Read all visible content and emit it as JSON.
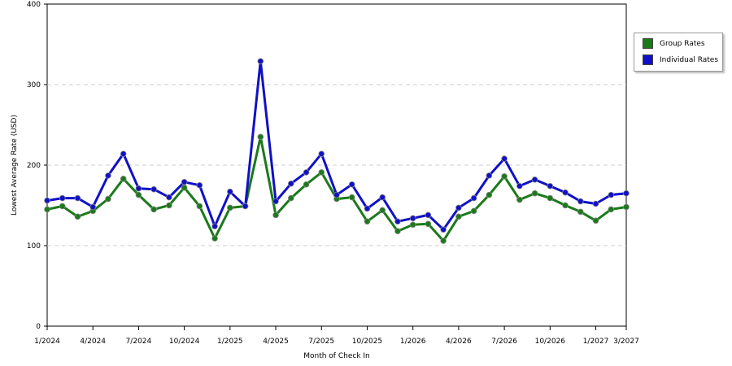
{
  "chart_data": {
    "type": "line",
    "xlabel": "Month of Check In",
    "ylabel": "Lowest Average Rate (USD)",
    "ylim": [
      0,
      400
    ],
    "yticks": [
      0,
      100,
      200,
      300,
      400
    ],
    "xtick_labels": [
      "1/2024",
      "4/2024",
      "7/2024",
      "10/2024",
      "1/2025",
      "4/2025",
      "7/2025",
      "10/2025",
      "1/2026",
      "4/2026",
      "7/2026",
      "10/2026",
      "1/2027",
      "3/2027"
    ],
    "grid": "horizontal dashed",
    "legend_position": "right",
    "x": [
      "1/2024",
      "2/2024",
      "3/2024",
      "4/2024",
      "5/2024",
      "6/2024",
      "7/2024",
      "8/2024",
      "9/2024",
      "10/2024",
      "11/2024",
      "12/2024",
      "1/2025",
      "2/2025",
      "3/2025",
      "4/2025",
      "5/2025",
      "6/2025",
      "7/2025",
      "8/2025",
      "9/2025",
      "10/2025",
      "11/2025",
      "12/2025",
      "1/2026",
      "2/2026",
      "3/2026",
      "4/2026",
      "5/2026",
      "6/2026",
      "7/2026",
      "8/2026",
      "9/2026",
      "10/2026",
      "11/2026",
      "12/2026",
      "1/2027",
      "2/2027",
      "3/2027"
    ],
    "series": [
      {
        "name": "Group Rates",
        "color": "#1a7a1a",
        "values": [
          145,
          149,
          136,
          143,
          158,
          183,
          163,
          145,
          150,
          172,
          149,
          109,
          147,
          149,
          235,
          138,
          159,
          176,
          191,
          158,
          160,
          130,
          144,
          118,
          126,
          127,
          106,
          136,
          143,
          163,
          186,
          157,
          165,
          159,
          150,
          142,
          131,
          145,
          148
        ]
      },
      {
        "name": "Individual Rates",
        "color": "#1010c8",
        "values": [
          156,
          159,
          159,
          148,
          187,
          214,
          171,
          170,
          160,
          179,
          175,
          124,
          167,
          149,
          329,
          155,
          177,
          191,
          214,
          163,
          176,
          146,
          160,
          130,
          134,
          138,
          120,
          147,
          159,
          187,
          208,
          174,
          182,
          174,
          166,
          155,
          152,
          163,
          165
        ]
      }
    ]
  },
  "legend": {
    "items": [
      {
        "label": "Group Rates",
        "color": "#1a7a1a"
      },
      {
        "label": "Individual Rates",
        "color": "#1010c8"
      }
    ]
  }
}
